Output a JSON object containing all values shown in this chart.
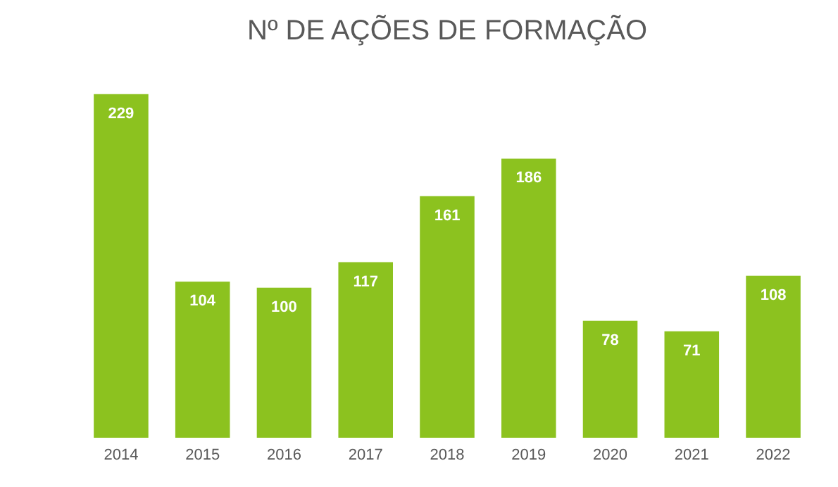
{
  "chart_data": {
    "type": "bar",
    "title": "Nº DE AÇÕES DE FORMAÇÃO",
    "categories": [
      "2014",
      "2015",
      "2016",
      "2017",
      "2018",
      "2019",
      "2020",
      "2021",
      "2022"
    ],
    "values": [
      229,
      104,
      100,
      117,
      161,
      186,
      78,
      71,
      108
    ],
    "color": "#8cc21f",
    "data_labels": true,
    "grid": false
  }
}
